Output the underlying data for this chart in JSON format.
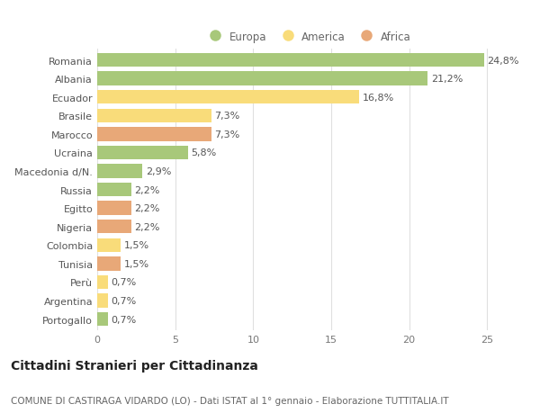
{
  "categories": [
    "Romania",
    "Albania",
    "Ecuador",
    "Brasile",
    "Marocco",
    "Ucraina",
    "Macedonia d/N.",
    "Russia",
    "Egitto",
    "Nigeria",
    "Colombia",
    "Tunisia",
    "Perù",
    "Argentina",
    "Portogallo"
  ],
  "values": [
    24.8,
    21.2,
    16.8,
    7.3,
    7.3,
    5.8,
    2.9,
    2.2,
    2.2,
    2.2,
    1.5,
    1.5,
    0.7,
    0.7,
    0.7
  ],
  "labels": [
    "24,8%",
    "21,2%",
    "16,8%",
    "7,3%",
    "7,3%",
    "5,8%",
    "2,9%",
    "2,2%",
    "2,2%",
    "2,2%",
    "1,5%",
    "1,5%",
    "0,7%",
    "0,7%",
    "0,7%"
  ],
  "continents": [
    "Europa",
    "Europa",
    "America",
    "America",
    "Africa",
    "Europa",
    "Europa",
    "Europa",
    "Africa",
    "Africa",
    "America",
    "Africa",
    "America",
    "America",
    "Europa"
  ],
  "colors": {
    "Europa": "#a8c87a",
    "America": "#f9dc7a",
    "Africa": "#e8a878"
  },
  "xlim": [
    0,
    27
  ],
  "xticks": [
    0,
    5,
    10,
    15,
    20,
    25
  ],
  "bg_color": "#ffffff",
  "grid_color": "#e0e0e0",
  "title": "Cittadini Stranieri per Cittadinanza",
  "subtitle": "COMUNE DI CASTIRAGA VIDARDO (LO) - Dati ISTAT al 1° gennaio - Elaborazione TUTTITALIA.IT",
  "bar_height": 0.75,
  "label_fontsize": 8,
  "title_fontsize": 10,
  "subtitle_fontsize": 7.5,
  "ytick_fontsize": 8,
  "xtick_fontsize": 8,
  "legend_fontsize": 8.5
}
